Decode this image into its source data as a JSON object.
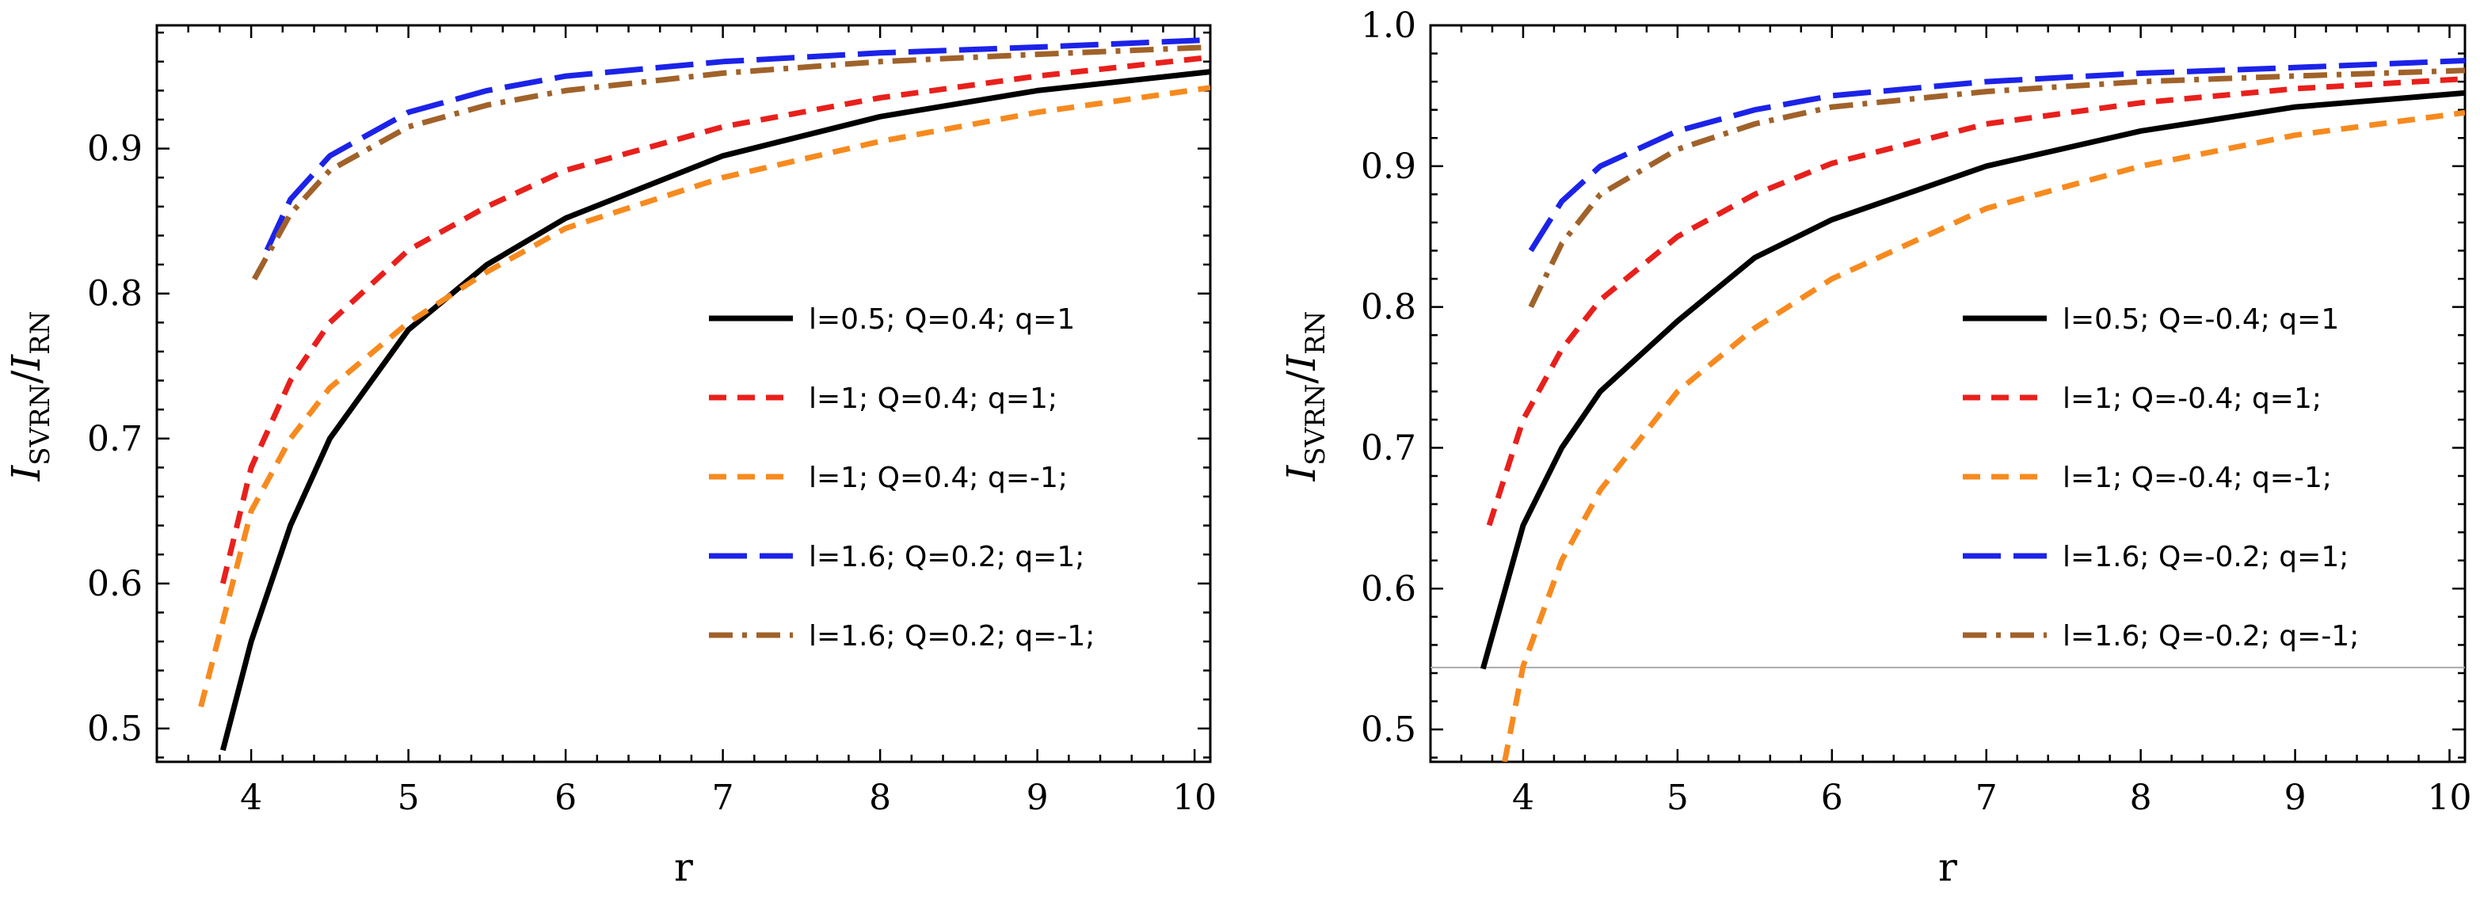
{
  "chart_data": [
    {
      "type": "line",
      "xlabel": "r",
      "ylabel_main": "I",
      "ylabel_num_sub": "SVRN",
      "ylabel_sep": "/",
      "ylabel_den_sub": "RN",
      "xlim": [
        3.4,
        10.1
      ],
      "ylim": [
        0.477,
        0.985
      ],
      "xticks": [
        4,
        5,
        6,
        7,
        8,
        9,
        10
      ],
      "yticks": [
        0.5,
        0.6,
        0.7,
        0.8,
        0.9
      ],
      "reference_line": null,
      "series": [
        {
          "name": "l=0.5; Q=0.4; q=1",
          "color": "#000000",
          "style": "solid",
          "x": [
            3.82,
            4.0,
            4.25,
            4.5,
            5.0,
            5.5,
            6.0,
            7.0,
            8.0,
            9.0,
            10.1
          ],
          "y": [
            0.485,
            0.56,
            0.64,
            0.7,
            0.775,
            0.82,
            0.852,
            0.895,
            0.922,
            0.94,
            0.953
          ]
        },
        {
          "name": "l=1; Q=0.4; q=1;",
          "color": "#e8201c",
          "style": "dashed",
          "x": [
            3.82,
            4.0,
            4.25,
            4.5,
            5.0,
            5.5,
            6.0,
            7.0,
            8.0,
            9.0,
            10.1
          ],
          "y": [
            0.6,
            0.68,
            0.74,
            0.78,
            0.83,
            0.86,
            0.885,
            0.915,
            0.935,
            0.95,
            0.963
          ]
        },
        {
          "name": "l=1; Q=0.4; q=-1;",
          "color": "#f78a1e",
          "style": "dashed",
          "x": [
            3.68,
            4.0,
            4.25,
            4.5,
            5.0,
            5.5,
            6.0,
            7.0,
            8.0,
            9.0,
            10.1
          ],
          "y": [
            0.515,
            0.65,
            0.7,
            0.735,
            0.78,
            0.815,
            0.845,
            0.88,
            0.905,
            0.925,
            0.942
          ]
        },
        {
          "name": "l=1.6; Q=0.2; q=1;",
          "color": "#1c23e8",
          "style": "longdash",
          "x": [
            4.1,
            4.25,
            4.5,
            5.0,
            5.5,
            6.0,
            7.0,
            8.0,
            9.0,
            10.1
          ],
          "y": [
            0.83,
            0.865,
            0.895,
            0.925,
            0.94,
            0.95,
            0.96,
            0.966,
            0.97,
            0.975
          ]
        },
        {
          "name": "l=1.6; Q=0.2; q=-1;",
          "color": "#a0622a",
          "style": "dashdot",
          "x": [
            4.02,
            4.25,
            4.5,
            5.0,
            5.5,
            6.0,
            7.0,
            8.0,
            9.0,
            10.1
          ],
          "y": [
            0.81,
            0.855,
            0.885,
            0.915,
            0.93,
            0.94,
            0.952,
            0.96,
            0.965,
            0.97
          ]
        }
      ]
    },
    {
      "type": "line",
      "xlabel": "r",
      "ylabel_main": "I",
      "ylabel_num_sub": "SVRN",
      "ylabel_sep": "/",
      "ylabel_den_sub": "RN",
      "xlim": [
        3.4,
        10.1
      ],
      "ylim": [
        0.477,
        1.0
      ],
      "xticks": [
        4,
        5,
        6,
        7,
        8,
        9,
        10
      ],
      "yticks": [
        0.5,
        0.6,
        0.7,
        0.8,
        0.9,
        1.0
      ],
      "reference_line": 0.544,
      "series": [
        {
          "name": "l=0.5; Q=-0.4; q=1",
          "color": "#000000",
          "style": "solid",
          "x": [
            3.74,
            4.0,
            4.25,
            4.5,
            5.0,
            5.5,
            6.0,
            7.0,
            8.0,
            9.0,
            10.1
          ],
          "y": [
            0.543,
            0.645,
            0.7,
            0.74,
            0.79,
            0.835,
            0.862,
            0.9,
            0.925,
            0.942,
            0.952
          ]
        },
        {
          "name": "l=1; Q=-0.4; q=1;",
          "color": "#e8201c",
          "style": "dashed",
          "x": [
            3.78,
            4.0,
            4.25,
            4.5,
            5.0,
            5.5,
            6.0,
            7.0,
            8.0,
            9.0,
            10.1
          ],
          "y": [
            0.645,
            0.72,
            0.77,
            0.805,
            0.85,
            0.88,
            0.902,
            0.93,
            0.945,
            0.955,
            0.962
          ]
        },
        {
          "name": "l=1; Q=-0.4; q=-1;",
          "color": "#f78a1e",
          "style": "dashed",
          "x": [
            3.88,
            4.0,
            4.25,
            4.5,
            5.0,
            5.5,
            6.0,
            7.0,
            8.0,
            9.0,
            10.1
          ],
          "y": [
            0.477,
            0.545,
            0.62,
            0.67,
            0.74,
            0.785,
            0.82,
            0.87,
            0.9,
            0.922,
            0.938
          ]
        },
        {
          "name": "l=1.6; Q=-0.2; q=1;",
          "color": "#1c23e8",
          "style": "longdash",
          "x": [
            4.05,
            4.25,
            4.5,
            5.0,
            5.5,
            6.0,
            7.0,
            8.0,
            9.0,
            10.1
          ],
          "y": [
            0.84,
            0.875,
            0.9,
            0.925,
            0.94,
            0.95,
            0.96,
            0.966,
            0.97,
            0.975
          ]
        },
        {
          "name": "l=1.6; Q=-0.2; q=-1;",
          "color": "#a0622a",
          "style": "dashdot",
          "x": [
            4.05,
            4.25,
            4.5,
            5.0,
            5.5,
            6.0,
            7.0,
            8.0,
            9.0,
            10.1
          ],
          "y": [
            0.8,
            0.845,
            0.88,
            0.912,
            0.93,
            0.942,
            0.953,
            0.96,
            0.964,
            0.968
          ]
        }
      ]
    }
  ]
}
